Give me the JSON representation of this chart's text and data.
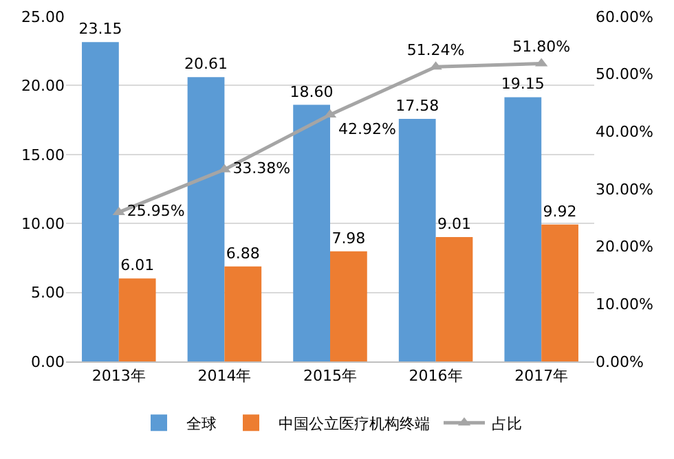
{
  "chart_data": {
    "type": "bar",
    "categories": [
      "2013年",
      "2014年",
      "2015年",
      "2016年",
      "2017年"
    ],
    "series": [
      {
        "name": "全球",
        "color": "#5b9bd5",
        "values": [
          23.15,
          20.61,
          18.6,
          17.58,
          19.15
        ],
        "value_labels": [
          "23.15",
          "20.61",
          "18.60",
          "17.58",
          "19.15"
        ]
      },
      {
        "name": "中国公立医疗机构终端",
        "color": "#ed7d31",
        "values": [
          6.01,
          6.88,
          7.98,
          9.01,
          9.92
        ],
        "value_labels": [
          "6.01",
          "6.88",
          "7.98",
          "9.01",
          "9.92"
        ]
      },
      {
        "name": "占比",
        "type": "line",
        "axis": "y2",
        "color": "#a5a5a5",
        "marker": "triangle",
        "values": [
          25.95,
          33.38,
          42.92,
          51.24,
          51.8
        ],
        "value_labels": [
          "25.95%",
          "33.38%",
          "42.92%",
          "51.24%",
          "51.80%"
        ]
      }
    ],
    "ylim": [
      0,
      25
    ],
    "yticks": [
      {
        "value": 0,
        "label": "0.00"
      },
      {
        "value": 5,
        "label": "5.00"
      },
      {
        "value": 10,
        "label": "10.00"
      },
      {
        "value": 15,
        "label": "15.00"
      },
      {
        "value": 20,
        "label": "20.00"
      },
      {
        "value": 25,
        "label": "25.00"
      }
    ],
    "y2lim": [
      0,
      60
    ],
    "y2ticks": [
      {
        "value": 0,
        "label": "0.00%"
      },
      {
        "value": 10,
        "label": "10.00%"
      },
      {
        "value": 20,
        "label": "20.00%"
      },
      {
        "value": 30,
        "label": "30.00%"
      },
      {
        "value": 40,
        "label": "40.00%"
      },
      {
        "value": 50,
        "label": "50.00%"
      },
      {
        "value": 60,
        "label": "60.00%"
      }
    ],
    "grid": "y",
    "legend": "bottom"
  }
}
